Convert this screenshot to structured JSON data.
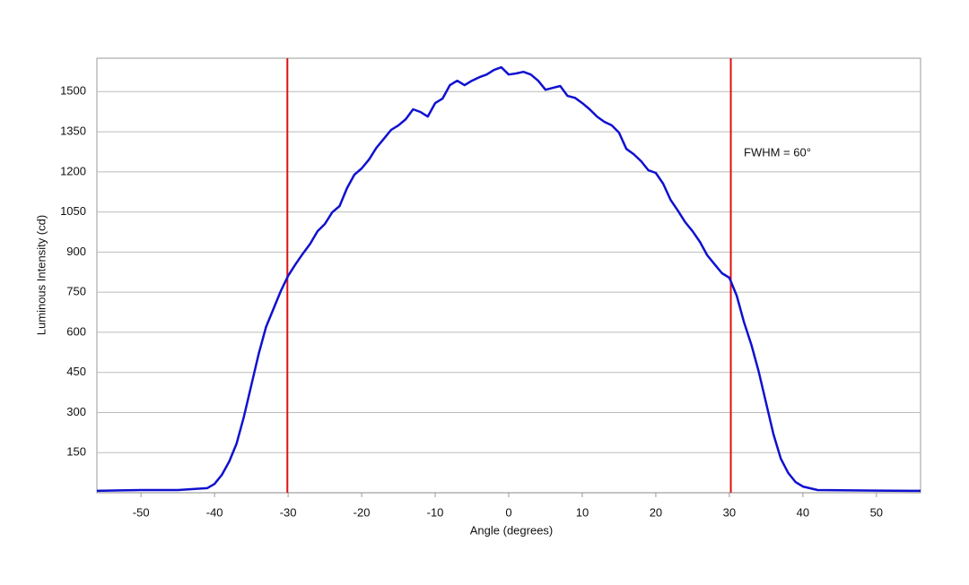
{
  "chart_data": {
    "type": "line",
    "x_label": "Angle (degrees)",
    "y_label": "Luminous Intensity (cd)",
    "annotation": "FWHM = 60°",
    "x": [
      -56,
      -50,
      -45,
      -41,
      -40,
      -39,
      -38,
      -37,
      -36,
      -35,
      -34,
      -33,
      -32,
      -31,
      -30,
      -29,
      -28,
      -27,
      -26,
      -25,
      -24,
      -23,
      -22,
      -21,
      -20,
      -19,
      -18,
      -17,
      -16,
      -15,
      -14,
      -13,
      -12,
      -11,
      -10,
      -9,
      -8,
      -7,
      -6,
      -5,
      -4,
      -3,
      -2,
      -1,
      0,
      1,
      2,
      3,
      4,
      5,
      6,
      7,
      8,
      9,
      10,
      11,
      12,
      13,
      14,
      15,
      16,
      17,
      18,
      19,
      20,
      21,
      22,
      23,
      24,
      25,
      26,
      27,
      28,
      29,
      30,
      31,
      32,
      33,
      34,
      35,
      36,
      37,
      38,
      39,
      40,
      42,
      50,
      56
    ],
    "series": [
      {
        "color": "#1010d0",
        "values": [
          7,
          10,
          10,
          17,
          33,
          67,
          117,
          184,
          285,
          402,
          519,
          620,
          687,
          754,
          811,
          854,
          894,
          931,
          978,
          1005,
          1049,
          1072,
          1139,
          1189,
          1213,
          1246,
          1290,
          1323,
          1357,
          1374,
          1397,
          1434,
          1424,
          1407,
          1457,
          1474,
          1524,
          1541,
          1524,
          1541,
          1554,
          1564,
          1581,
          1591,
          1564,
          1568,
          1574,
          1564,
          1541,
          1507,
          1514,
          1521,
          1484,
          1477,
          1457,
          1434,
          1407,
          1387,
          1374,
          1347,
          1286,
          1266,
          1240,
          1206,
          1196,
          1156,
          1096,
          1055,
          1012,
          978,
          938,
          888,
          854,
          821,
          804,
          737,
          637,
          553,
          452,
          335,
          218,
          127,
          74,
          40,
          23,
          10,
          8,
          7
        ]
      }
    ],
    "vlines": [
      -30.1,
      30.2
    ],
    "vline_color": "#dd1111",
    "xlim": [
      -56,
      56
    ],
    "xticks": [
      -50,
      -40,
      -30,
      -20,
      -10,
      0,
      10,
      20,
      30,
      40,
      50
    ],
    "ylim": [
      0,
      1625
    ],
    "yticks": [
      150,
      300,
      450,
      600,
      750,
      900,
      1050,
      1200,
      1350,
      1500
    ],
    "grid": true
  }
}
